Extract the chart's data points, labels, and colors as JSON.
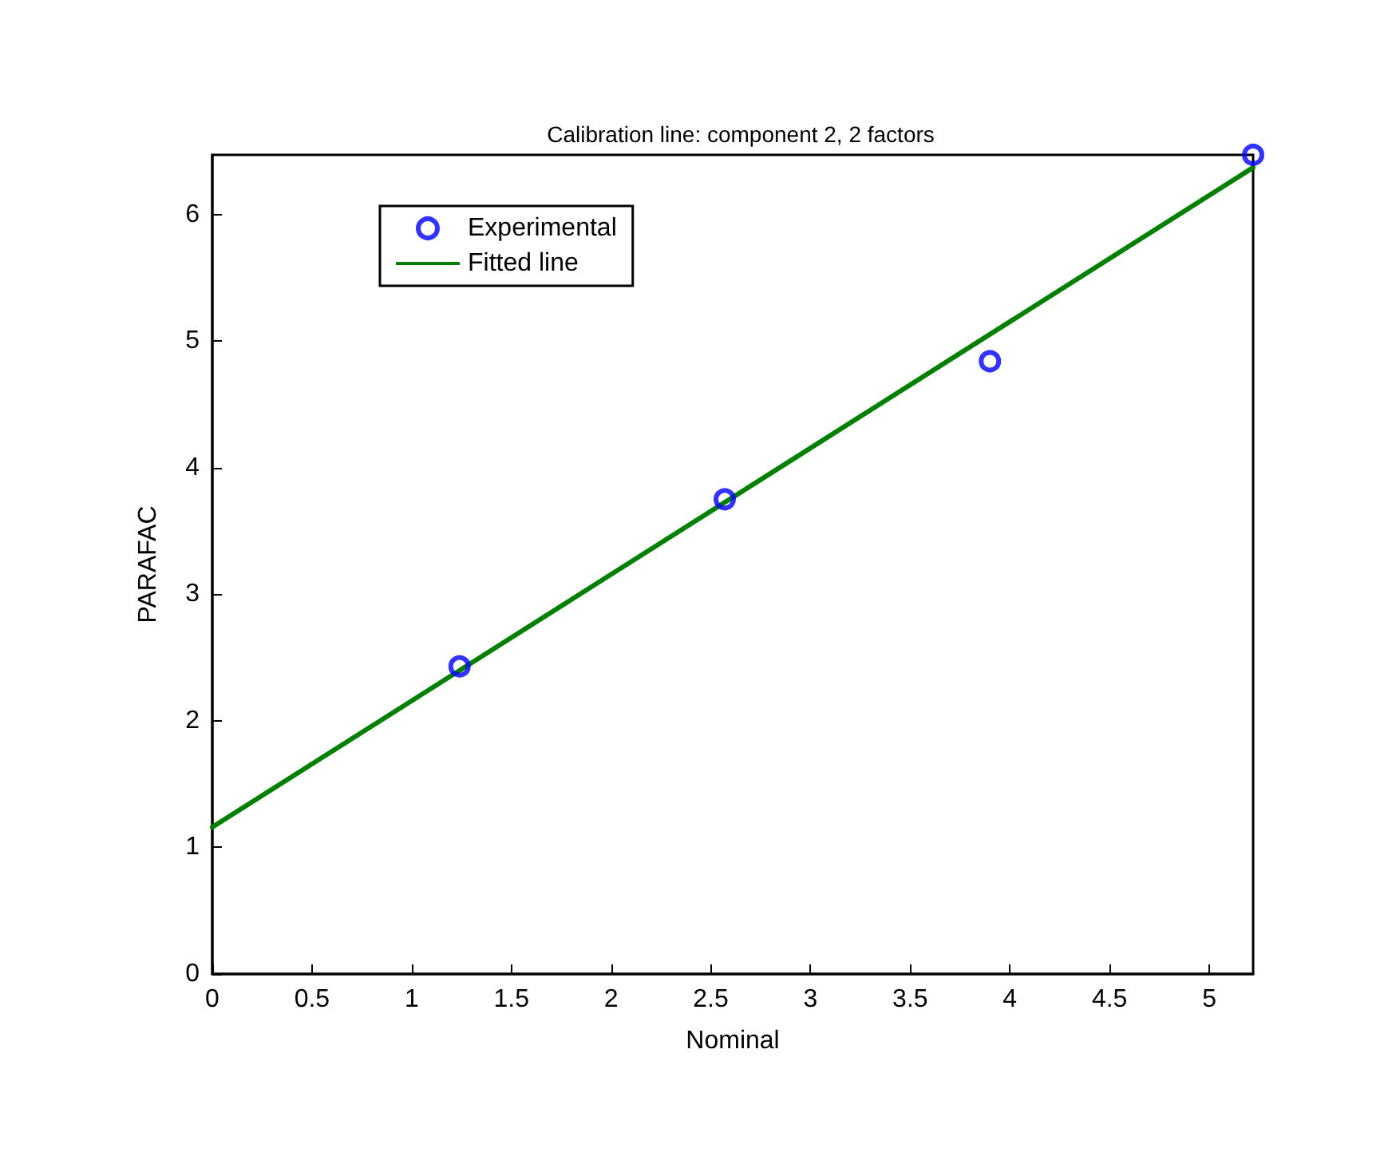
{
  "chart_data": {
    "type": "scatter",
    "title": "Calibration line: component 2, 2 factors",
    "xlabel": "Nominal",
    "ylabel": "PARAFAC",
    "xlim": [
      0,
      5.22
    ],
    "xticks": [
      0,
      0.5,
      1,
      1.5,
      2,
      2.5,
      3,
      3.5,
      4,
      4.5,
      5
    ],
    "ylim": [
      0,
      6.47
    ],
    "yticks": [
      0,
      1,
      2,
      3,
      4,
      5,
      6
    ],
    "grid": false,
    "legend": "top left",
    "marker": "circle",
    "series": [
      {
        "name": "Experimental",
        "color": "#0000ff",
        "x": [
          1.24,
          2.57,
          3.9,
          5.22
        ],
        "values": [
          2.43,
          3.75,
          4.84,
          6.47
        ]
      },
      {
        "name": "Fitted line",
        "type": "line",
        "color": "#008000",
        "marker": "none",
        "line_style": "solid",
        "x": [
          0,
          5.22
        ],
        "values": [
          1.16,
          6.37
        ]
      }
    ]
  }
}
